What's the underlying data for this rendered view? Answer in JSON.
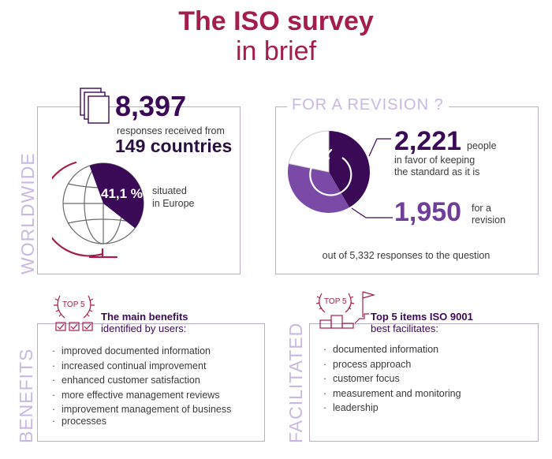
{
  "header": {
    "title_line1": "The ISO survey",
    "title_line2": "in brief"
  },
  "worldwide": {
    "side_label": "WORLDWIDE",
    "responses_count": "8,397",
    "responses_text": "responses received from",
    "countries": "149 countries",
    "europe_percent": "41,1 %",
    "europe_text_line1": "situated",
    "europe_text_line2": "in Europe",
    "europe_fraction": 0.411
  },
  "revision": {
    "heading": "FOR A REVISION ?",
    "keep_count": "2,221",
    "keep_text_line1": "people",
    "keep_text_line2": "in favor of keeping",
    "keep_text_line3": "the standard as it is",
    "revise_count": "1,950",
    "revise_text_line1": "for a",
    "revise_text_line2": "revision",
    "total_text": "out of 5,332 responses to the question",
    "keep_fraction": 0.4166,
    "revise_fraction": 0.3657
  },
  "benefits": {
    "side_label": "BENEFITS",
    "badge": "TOP 5",
    "heading_bold": "The main benefits",
    "heading_normal": "identified by users:",
    "items": [
      "improved documented information",
      "increased continual improvement",
      "enhanced customer satisfaction",
      "more effective management reviews",
      "improvement management of business",
      "processes"
    ]
  },
  "facilitated": {
    "side_label": "FACILITATED",
    "badge": "TOP 5",
    "heading_bold": "Top 5 items ISO 9001",
    "heading_normal": "best facilitates:",
    "items": [
      "documented information",
      "process approach",
      "customer focus",
      "measurement and monitoring",
      "leadership"
    ]
  },
  "colors": {
    "title": "#a31d4f",
    "dark_purple": "#3b0a57",
    "mid_purple": "#6f3d9a",
    "pale_purple": "#c9b8e0",
    "border": "#b9aec4"
  }
}
